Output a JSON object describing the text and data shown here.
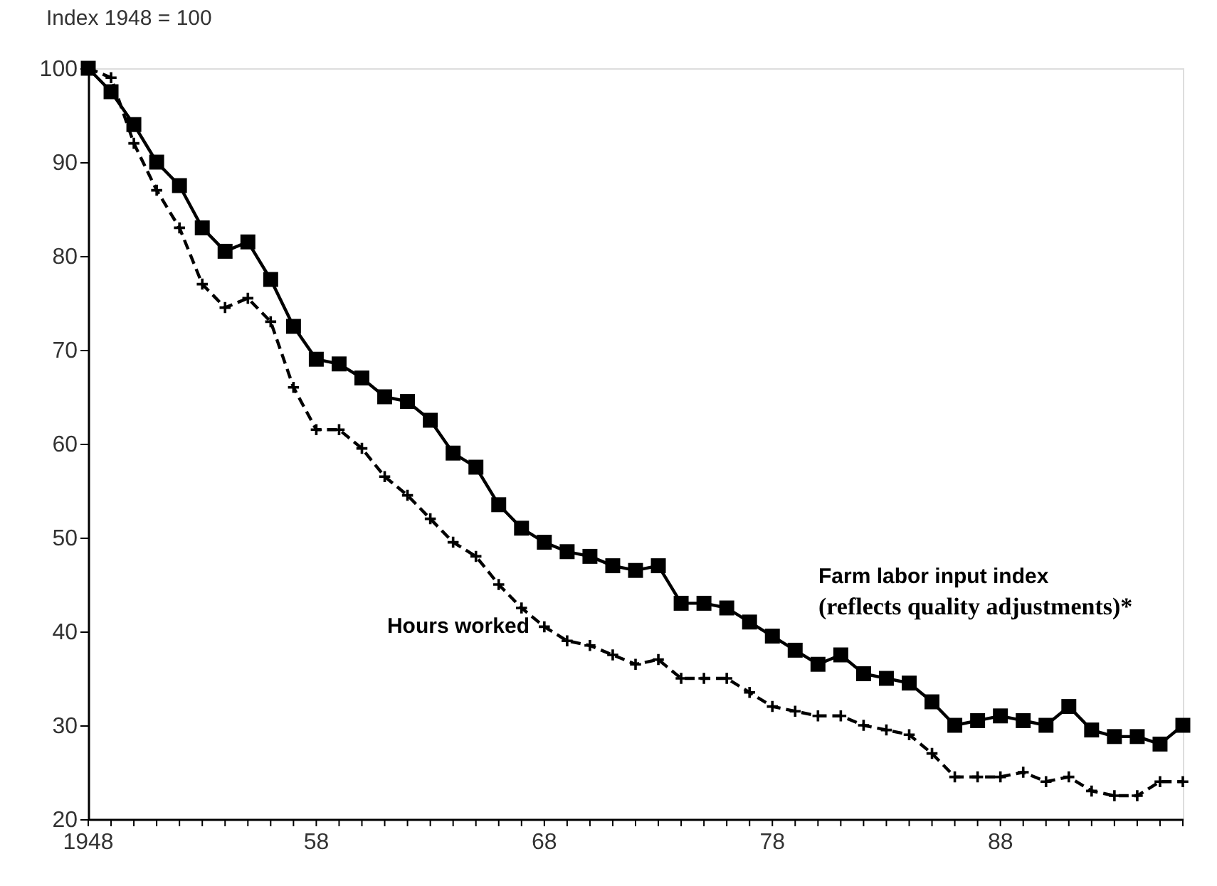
{
  "chart_data": {
    "type": "line",
    "ylabel": "Index 1948 = 100",
    "x": [
      1948,
      1949,
      1950,
      1951,
      1952,
      1953,
      1954,
      1955,
      1956,
      1957,
      1958,
      1959,
      1960,
      1961,
      1962,
      1963,
      1964,
      1965,
      1966,
      1967,
      1968,
      1969,
      1970,
      1971,
      1972,
      1973,
      1974,
      1975,
      1976,
      1977,
      1978,
      1979,
      1980,
      1981,
      1982,
      1983,
      1984,
      1985,
      1986,
      1987,
      1988,
      1989,
      1990,
      1991,
      1992,
      1993,
      1994,
      1995,
      1996
    ],
    "series": [
      {
        "name": "Farm labor input index\n(reflects quality adjustments)*",
        "color": "#000000",
        "marker": "square",
        "line_style": "solid",
        "values": [
          100,
          97.5,
          94,
          90,
          87.5,
          83,
          80.5,
          81.5,
          77.5,
          72.5,
          69,
          68.5,
          67,
          65,
          64.5,
          62.5,
          59,
          57.5,
          53.5,
          51,
          49.5,
          48.5,
          48,
          47,
          46.5,
          47,
          43,
          43,
          42.5,
          41,
          39.5,
          38,
          36.5,
          37.5,
          35.5,
          35,
          34.5,
          32.5,
          30,
          30.5,
          31,
          30.5,
          30,
          32,
          29.5,
          28.8,
          28.8,
          28,
          30
        ]
      },
      {
        "name": "Hours worked",
        "color": "#000000",
        "marker": "cross",
        "line_style": "dashed",
        "values": [
          100,
          99,
          92,
          87,
          83,
          77,
          74.5,
          75.5,
          73,
          66,
          61.5,
          61.5,
          59.5,
          56.5,
          54.5,
          52,
          49.5,
          48,
          45,
          42.5,
          40.5,
          39,
          38.5,
          37.5,
          36.5,
          37,
          35,
          35,
          35,
          33.5,
          32,
          31.5,
          31,
          31,
          30,
          29.5,
          29,
          27,
          24.5,
          24.5,
          24.5,
          25,
          24,
          24.5,
          23,
          22.5,
          22.5,
          24,
          24
        ]
      }
    ],
    "xlim": [
      1948,
      1996
    ],
    "xticks": [
      1948,
      {
        "value": 1949,
        "label": null
      },
      {
        "value": 1950,
        "label": null
      },
      {
        "value": 1951,
        "label": null
      },
      {
        "value": 1952,
        "label": null
      },
      {
        "value": 1953,
        "label": null
      },
      {
        "value": 1954,
        "label": null
      },
      {
        "value": 1955,
        "label": null
      },
      {
        "value": 1956,
        "label": null
      },
      {
        "value": 1957,
        "label": null
      },
      {
        "value": 1958,
        "label": "58"
      },
      {
        "value": 1959,
        "label": null
      },
      {
        "value": 1960,
        "label": null
      },
      {
        "value": 1961,
        "label": null
      },
      {
        "value": 1962,
        "label": null
      },
      {
        "value": 1963,
        "label": null
      },
      {
        "value": 1964,
        "label": null
      },
      {
        "value": 1965,
        "label": null
      },
      {
        "value": 1966,
        "label": null
      },
      {
        "value": 1967,
        "label": null
      },
      {
        "value": 1968,
        "label": "68"
      },
      {
        "value": 1969,
        "label": null
      },
      {
        "value": 1970,
        "label": null
      },
      {
        "value": 1971,
        "label": null
      },
      {
        "value": 1972,
        "label": null
      },
      {
        "value": 1973,
        "label": null
      },
      {
        "value": 1974,
        "label": null
      },
      {
        "value": 1975,
        "label": null
      },
      {
        "value": 1976,
        "label": null
      },
      {
        "value": 1977,
        "label": null
      },
      {
        "value": 1978,
        "label": "78"
      },
      {
        "value": 1979,
        "label": null
      },
      {
        "value": 1980,
        "label": null
      },
      {
        "value": 1981,
        "label": null
      },
      {
        "value": 1982,
        "label": null
      },
      {
        "value": 1983,
        "label": null
      },
      {
        "value": 1984,
        "label": null
      },
      {
        "value": 1985,
        "label": null
      },
      {
        "value": 1986,
        "label": null
      },
      {
        "value": 1987,
        "label": null
      },
      {
        "value": 1988,
        "label": "88"
      },
      {
        "value": 1989,
        "label": null
      },
      {
        "value": 1990,
        "label": null
      },
      {
        "value": 1991,
        "label": null
      },
      {
        "value": 1992,
        "label": null
      },
      {
        "value": 1993,
        "label": null
      },
      {
        "value": 1994,
        "label": null
      },
      {
        "value": 1995,
        "label": null
      },
      {
        "value": 1996,
        "label": null
      }
    ],
    "ylim": [
      20,
      100
    ],
    "yticks": [
      20,
      30,
      40,
      50,
      60,
      70,
      80,
      90,
      100
    ],
    "grid": false
  }
}
